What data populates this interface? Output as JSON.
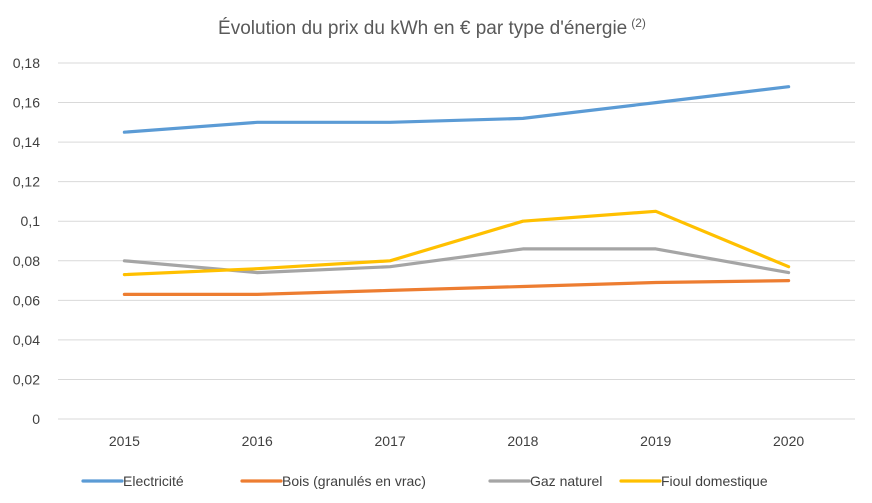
{
  "chart_data": {
    "type": "line",
    "title": "Évolution du prix du kWh en € par type d'énergie",
    "title_superscript": "(2)",
    "xlabel": "",
    "ylabel": "",
    "x": [
      "2015",
      "2016",
      "2017",
      "2018",
      "2019",
      "2020"
    ],
    "y_ticks": [
      "0",
      "0,02",
      "0,04",
      "0,06",
      "0,08",
      "0,1",
      "0,12",
      "0,14",
      "0,16",
      "0,18"
    ],
    "ylim": [
      0,
      0.18
    ],
    "grid": true,
    "legend_position": "bottom",
    "series": [
      {
        "name": "Electricité",
        "color": "#5b9bd5",
        "values": [
          0.145,
          0.15,
          0.15,
          0.152,
          0.16,
          0.168
        ]
      },
      {
        "name": "Bois (granulés en vrac)",
        "color": "#ed7d31",
        "values": [
          0.063,
          0.063,
          0.065,
          0.067,
          0.069,
          0.07
        ]
      },
      {
        "name": "Gaz naturel",
        "color": "#a5a5a5",
        "values": [
          0.08,
          0.074,
          0.077,
          0.086,
          0.086,
          0.074
        ]
      },
      {
        "name": "Fioul domestique",
        "color": "#ffc000",
        "values": [
          0.073,
          0.076,
          0.08,
          0.1,
          0.105,
          0.077
        ]
      }
    ]
  }
}
